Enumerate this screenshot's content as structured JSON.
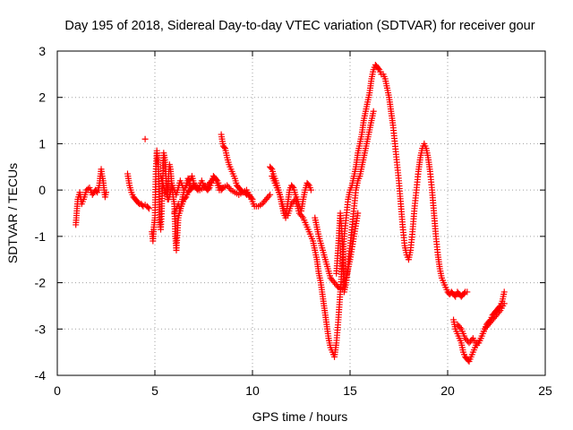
{
  "chart_data": {
    "type": "scatter",
    "title": "Day 195 of 2018, Sidereal Day-to-day VTEC variation (SDTVAR) for receiver gour",
    "xlabel": "GPS time / hours",
    "ylabel": "SDTVAR / TECUs",
    "xlim": [
      0,
      25
    ],
    "ylim": [
      -4,
      3
    ],
    "xticks": [
      "0",
      "5",
      "10",
      "15",
      "20",
      "25"
    ],
    "yticks": [
      "-4",
      "-3",
      "-2",
      "-1",
      "0",
      "1",
      "2",
      "3"
    ],
    "grid": true,
    "marker": "+",
    "color": "#ff0000",
    "series": [
      {
        "name": "SDTVAR",
        "segments": [
          {
            "x": [
              0.95,
              1.0,
              1.05,
              1.15,
              1.25,
              1.35,
              1.5,
              1.65,
              1.8,
              1.95,
              2.05,
              2.15,
              2.25,
              2.3,
              2.35,
              2.4,
              2.45,
              2.5
            ],
            "y": [
              -0.75,
              -0.45,
              -0.2,
              -0.05,
              -0.3,
              -0.2,
              0.0,
              0.05,
              -0.1,
              0.0,
              -0.05,
              0.1,
              0.45,
              0.3,
              0.2,
              0.0,
              -0.15,
              -0.05
            ]
          },
          {
            "x": [
              3.6,
              3.7,
              3.8,
              3.9,
              4.0,
              4.1,
              4.2,
              4.3,
              4.4,
              4.5,
              4.6,
              4.7
            ],
            "y": [
              0.35,
              0.1,
              -0.05,
              -0.15,
              -0.2,
              -0.25,
              -0.3,
              -0.3,
              -0.35,
              -0.32,
              -0.35,
              -0.4
            ]
          },
          {
            "x": [
              4.5
            ],
            "y": [
              1.1
            ]
          },
          {
            "x": [
              4.85,
              4.9,
              4.95,
              5.0,
              5.05,
              5.1,
              5.15,
              5.2,
              5.25,
              5.3,
              5.35,
              5.4,
              5.45,
              5.5,
              5.55,
              5.6,
              5.65,
              5.7,
              5.75,
              5.8,
              5.85,
              5.9,
              5.95,
              6.0,
              6.05,
              6.1,
              6.2,
              6.3,
              6.4,
              6.5,
              6.6,
              6.7,
              6.8,
              6.9,
              7.0
            ],
            "y": [
              -0.9,
              -1.1,
              -0.8,
              -0.6,
              0.4,
              0.85,
              0.6,
              0.3,
              -0.7,
              -0.85,
              -0.4,
              0.2,
              0.8,
              0.7,
              0.4,
              0.1,
              -0.2,
              0.3,
              0.55,
              0.45,
              0.2,
              0.0,
              -0.2,
              -0.3,
              -1.0,
              -1.3,
              -0.6,
              -0.4,
              -0.3,
              -0.2,
              -0.15,
              -0.05,
              0.0,
              0.05,
              0.1
            ]
          },
          {
            "x": [
              5.3,
              5.5,
              5.7,
              5.9,
              6.1,
              6.3,
              6.5,
              6.7,
              6.9,
              7.1,
              7.3,
              7.5,
              7.7,
              7.9,
              8.1,
              8.3,
              8.5,
              8.7,
              8.9,
              9.1,
              9.3,
              9.5,
              9.7,
              9.9,
              10.1,
              10.3,
              10.5,
              10.7,
              10.9
            ],
            "y": [
              0.3,
              0.0,
              -0.2,
              0.1,
              -0.1,
              0.2,
              0.0,
              0.15,
              0.05,
              0.1,
              0.0,
              0.05,
              0.1,
              0.2,
              0.25,
              0.0,
              0.05,
              0.1,
              0.0,
              -0.05,
              -0.1,
              -0.05,
              0.0,
              -0.15,
              -0.35,
              -0.35,
              -0.3,
              -0.2,
              -0.1
            ]
          },
          {
            "x": [
              6.0,
              6.1,
              6.2,
              6.3,
              6.4,
              6.5,
              6.6,
              6.7,
              6.8,
              6.9,
              7.0,
              7.1,
              7.2,
              7.3,
              7.4,
              7.5,
              7.6,
              7.7,
              7.8,
              7.9,
              8.0,
              8.1,
              8.2,
              8.3,
              8.4,
              8.5
            ],
            "y": [
              -0.5,
              -0.4,
              -0.3,
              -0.45,
              -0.2,
              0.0,
              0.1,
              0.25,
              0.2,
              0.3,
              0.15,
              0.05,
              0.0,
              0.1,
              0.2,
              0.1,
              0.05,
              0.0,
              0.05,
              0.15,
              0.3,
              0.25,
              0.2,
              0.1,
              0.0,
              0.05
            ]
          },
          {
            "x": [
              8.4,
              8.5,
              8.6,
              8.7,
              8.8,
              8.9,
              9.0,
              9.1,
              9.2,
              9.3,
              9.4,
              9.5,
              9.6,
              9.7,
              9.8,
              9.9,
              10.0
            ],
            "y": [
              1.2,
              0.95,
              0.9,
              0.7,
              0.55,
              0.45,
              0.35,
              0.25,
              0.1,
              0.05,
              0.0,
              -0.05,
              -0.05,
              -0.1,
              -0.1,
              -0.15,
              -0.2
            ]
          },
          {
            "x": [
              10.9,
              11.0,
              11.1,
              11.2,
              11.3,
              11.4,
              11.5,
              11.6,
              11.7,
              11.8,
              11.9,
              12.0,
              12.1,
              12.2,
              12.3,
              12.4,
              12.5,
              12.6,
              12.7,
              12.8,
              12.9,
              13.0
            ],
            "y": [
              0.5,
              0.45,
              0.3,
              0.2,
              0.05,
              -0.1,
              -0.3,
              -0.5,
              -0.6,
              -0.3,
              0.0,
              0.1,
              0.05,
              -0.1,
              -0.2,
              -0.35,
              -0.45,
              -0.2,
              0.0,
              0.15,
              0.1,
              0.0
            ]
          },
          {
            "x": [
              11.0,
              11.2,
              11.4,
              11.6,
              11.8,
              12.0,
              12.2,
              12.4,
              12.6,
              12.8,
              13.0,
              13.1,
              13.2,
              13.3,
              13.4,
              13.5,
              13.6,
              13.7,
              13.8,
              13.9,
              14.0,
              14.1,
              14.2,
              14.3,
              14.4,
              14.5,
              14.6,
              14.7,
              14.8,
              14.9,
              15.0,
              15.1,
              15.2,
              15.3,
              15.4,
              15.5,
              15.6,
              15.7,
              15.8,
              15.9,
              16.0,
              16.1,
              16.2,
              16.3,
              16.4,
              16.5,
              16.6,
              16.7,
              16.8,
              16.9,
              17.0,
              17.1,
              17.2,
              17.3,
              17.4,
              17.5,
              17.6,
              17.7,
              17.8,
              17.9,
              18.0,
              18.1,
              18.2,
              18.3,
              18.4,
              18.5,
              18.6,
              18.7,
              18.8,
              18.9,
              19.0,
              19.1,
              19.2,
              19.3,
              19.4,
              19.5,
              19.6,
              19.7,
              19.8,
              19.9,
              20.0,
              20.1,
              20.2,
              20.3,
              20.4,
              20.5,
              20.6,
              20.7,
              20.8,
              20.9,
              21.0
            ],
            "y": [
              0.3,
              0.1,
              -0.1,
              -0.4,
              -0.55,
              -0.3,
              -0.2,
              -0.5,
              -0.6,
              -0.8,
              -1.0,
              -1.1,
              -1.3,
              -1.5,
              -1.8,
              -2.0,
              -2.3,
              -2.6,
              -2.9,
              -3.2,
              -3.4,
              -3.5,
              -3.6,
              -3.3,
              -2.8,
              -2.2,
              -1.6,
              -1.0,
              -0.6,
              -0.2,
              0.0,
              0.1,
              0.3,
              0.5,
              0.8,
              1.0,
              1.2,
              1.5,
              1.7,
              1.9,
              2.1,
              2.4,
              2.6,
              2.7,
              2.65,
              2.6,
              2.5,
              2.5,
              2.4,
              2.2,
              2.0,
              1.7,
              1.4,
              1.0,
              0.6,
              0.2,
              -0.3,
              -0.8,
              -1.2,
              -1.4,
              -1.5,
              -1.3,
              -0.9,
              -0.4,
              0.0,
              0.4,
              0.7,
              0.9,
              1.0,
              0.9,
              0.7,
              0.4,
              0.0,
              -0.5,
              -1.0,
              -1.4,
              -1.7,
              -1.9,
              -2.0,
              -2.1,
              -2.2,
              -2.25,
              -2.2,
              -2.25,
              -2.3,
              -2.2,
              -2.25,
              -2.3,
              -2.25,
              -2.2,
              -2.2
            ]
          },
          {
            "x": [
              13.2,
              13.4,
              13.6,
              13.8,
              14.0,
              14.2,
              14.4,
              14.6,
              14.8,
              15.0,
              15.2,
              15.4
            ],
            "y": [
              -0.6,
              -1.0,
              -1.3,
              -1.6,
              -1.9,
              -2.0,
              -2.1,
              -2.15,
              -1.9,
              -1.5,
              -1.0,
              -0.5
            ]
          },
          {
            "x": [
              14.3,
              14.4,
              14.5,
              14.6,
              14.7,
              14.8,
              14.9,
              15.0,
              15.1,
              15.2,
              15.3,
              15.4,
              15.5,
              15.6,
              15.7,
              15.8,
              15.9,
              16.0,
              16.1,
              16.2
            ],
            "y": [
              -1.8,
              -1.2,
              -0.5,
              -1.0,
              -2.2,
              -2.0,
              -1.6,
              -1.2,
              -0.8,
              -0.4,
              0.0,
              0.2,
              0.3,
              0.5,
              0.7,
              0.9,
              1.1,
              1.3,
              1.5,
              1.7
            ]
          },
          {
            "x": [
              20.3,
              20.4,
              20.5,
              20.6,
              20.7,
              20.8,
              20.9,
              21.0,
              21.1,
              21.2,
              21.3,
              21.4,
              21.5,
              21.6,
              21.7,
              21.8,
              21.9,
              22.0,
              22.1,
              22.2,
              22.3,
              22.4,
              22.5,
              22.6,
              22.7,
              22.8,
              22.9
            ],
            "y": [
              -2.8,
              -3.0,
              -3.1,
              -3.2,
              -3.3,
              -3.5,
              -3.6,
              -3.65,
              -3.7,
              -3.6,
              -3.5,
              -3.4,
              -3.3,
              -3.3,
              -3.2,
              -3.1,
              -3.0,
              -2.9,
              -2.85,
              -2.8,
              -2.7,
              -2.65,
              -2.6,
              -2.55,
              -2.5,
              -2.4,
              -2.2
            ]
          },
          {
            "x": [
              20.5,
              20.7,
              20.9,
              21.1,
              21.3,
              21.5,
              21.7,
              21.9,
              22.1,
              22.3,
              22.5,
              22.7,
              22.9
            ],
            "y": [
              -2.9,
              -3.0,
              -3.2,
              -3.3,
              -3.2,
              -3.35,
              -3.2,
              -3.0,
              -2.9,
              -2.8,
              -2.7,
              -2.6,
              -2.45
            ]
          }
        ]
      }
    ]
  }
}
